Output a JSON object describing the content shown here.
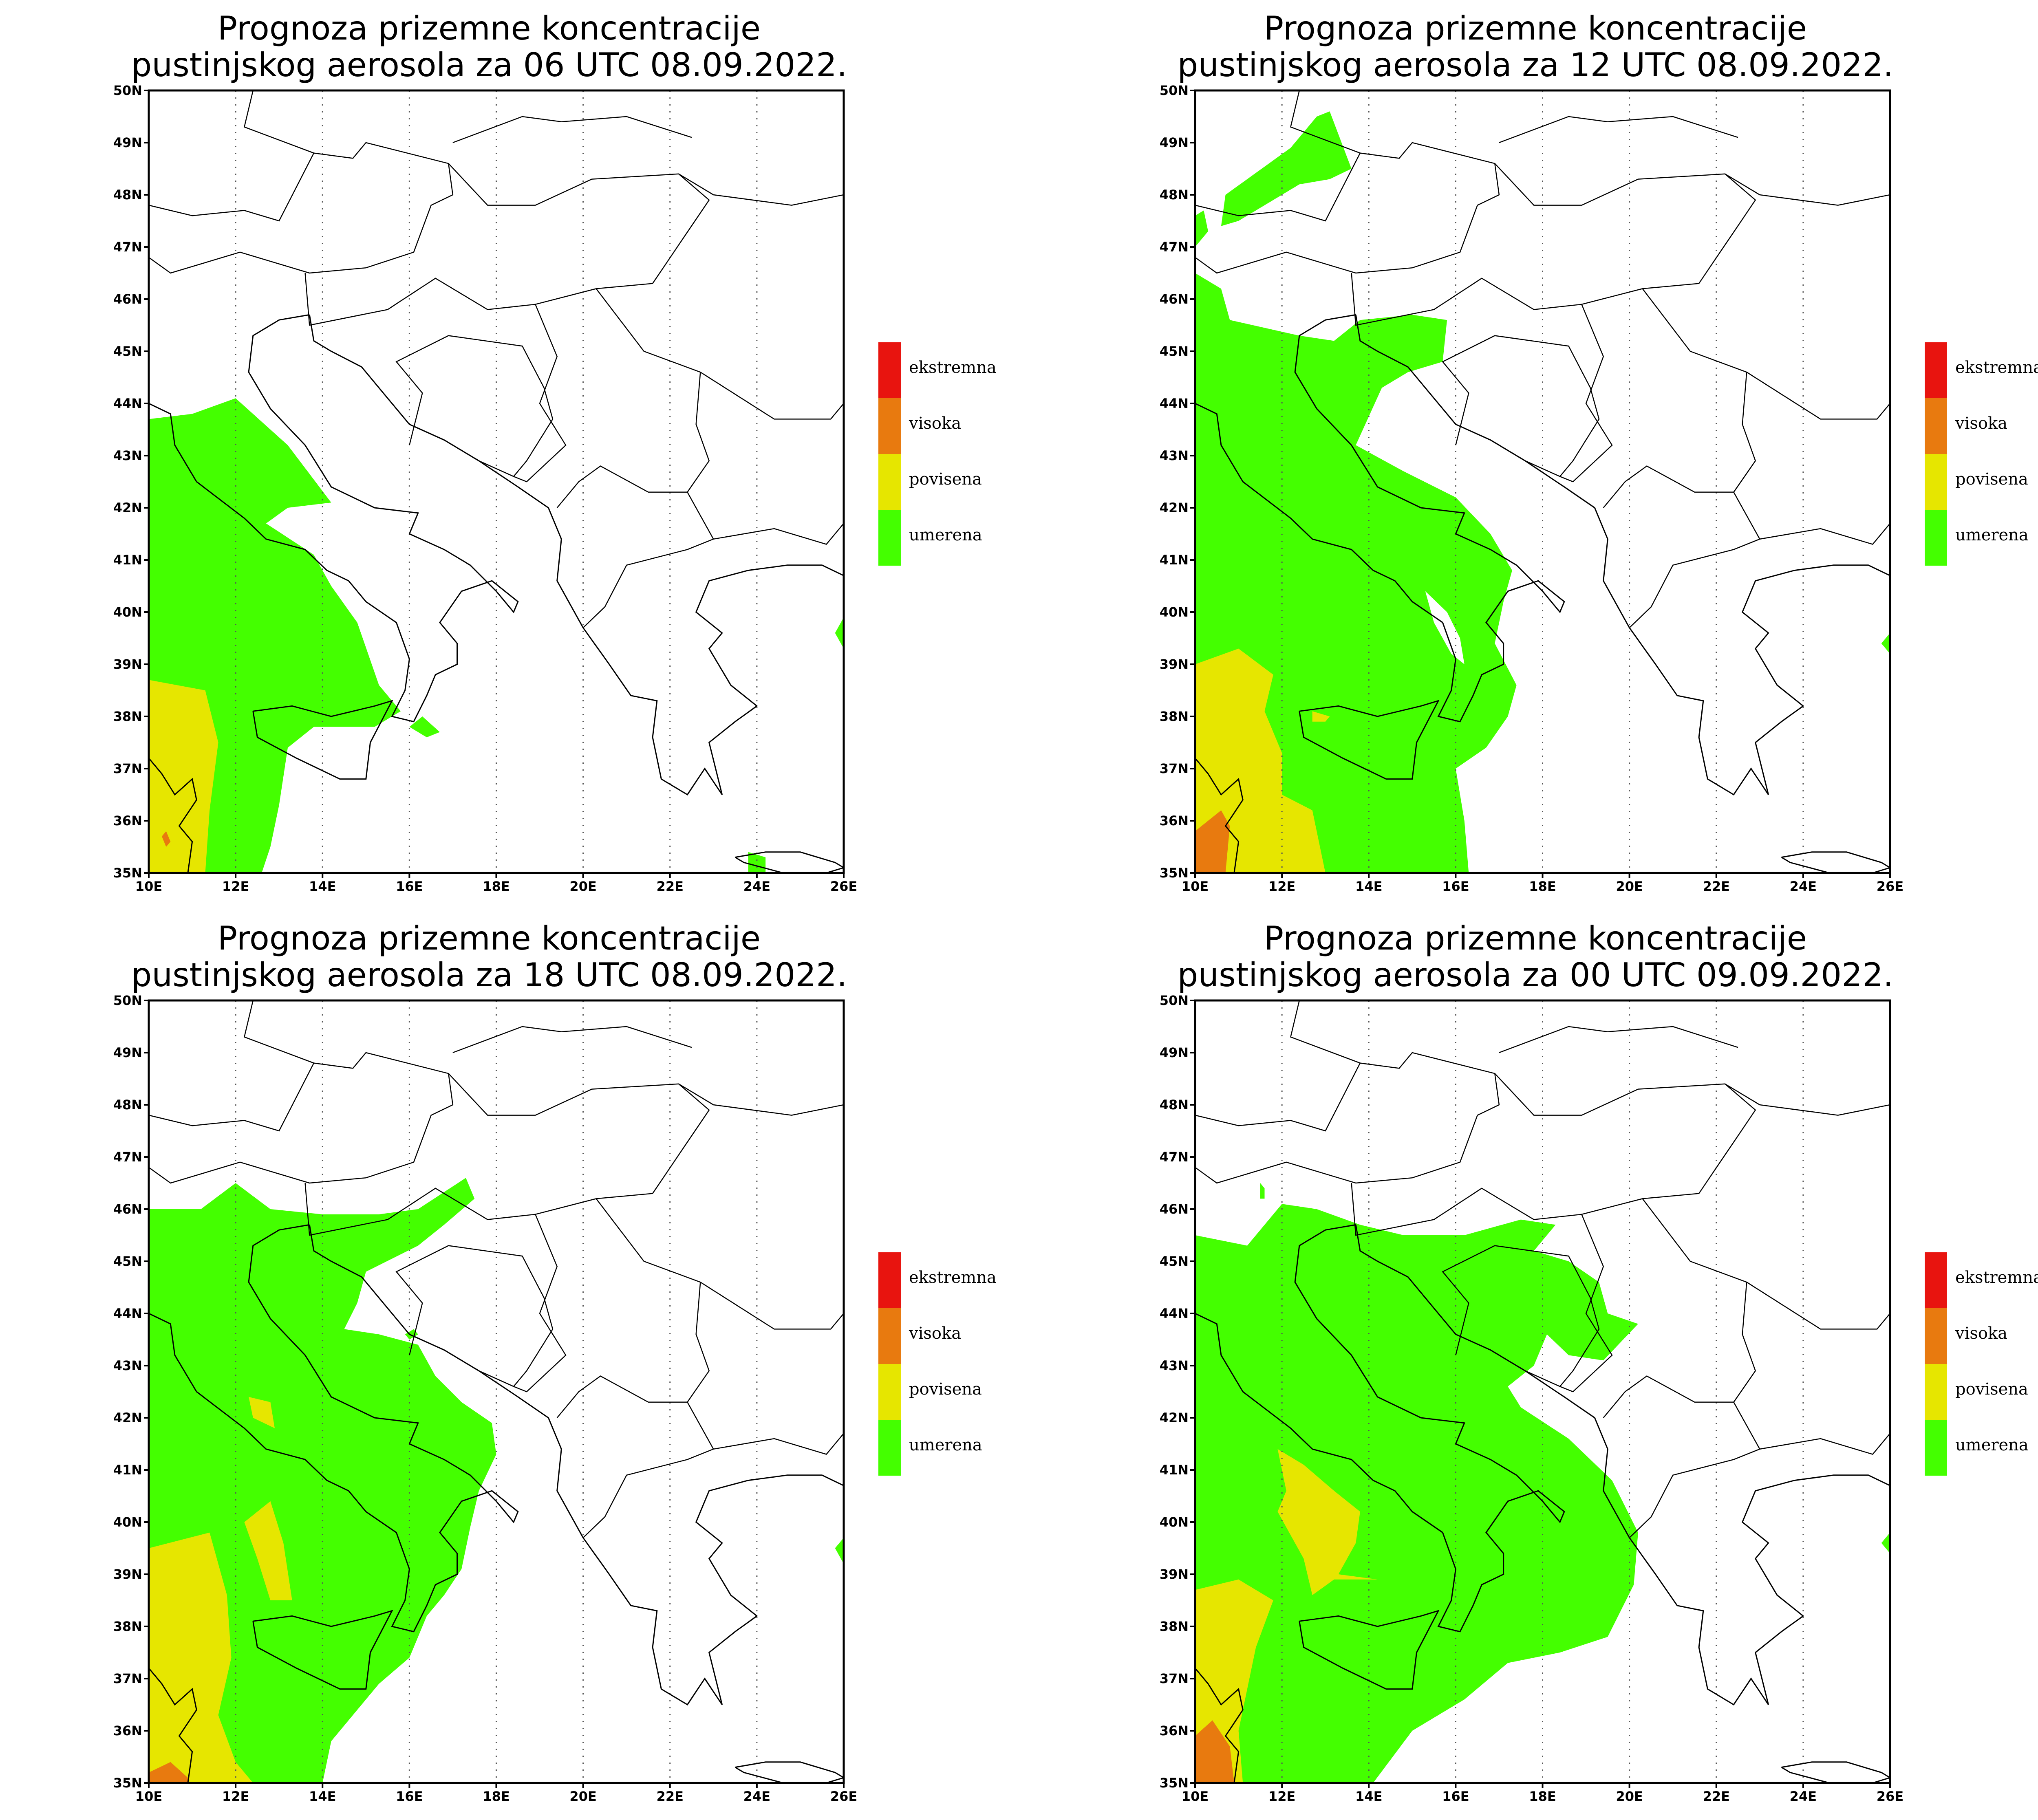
{
  "panels": [
    {
      "title_line1": "Prognoza prizemne koncentracije",
      "title_line2": "pustinjskog aerosola za 06 UTC 08.09.2022."
    },
    {
      "title_line1": "Prognoza prizemne koncentracije",
      "title_line2": "pustinjskog aerosola za 12 UTC 08.09.2022."
    },
    {
      "title_line1": "Prognoza prizemne koncentracije",
      "title_line2": "pustinjskog aerosola za 18 UTC 08.09.2022."
    },
    {
      "title_line1": "Prognoza prizemne koncentracije",
      "title_line2": "pustinjskog aerosola za 00 UTC 09.09.2022."
    }
  ],
  "lat_labels": [
    "50N",
    "49N",
    "48N",
    "47N",
    "46N",
    "45N",
    "44N",
    "43N",
    "42N",
    "41N",
    "40N",
    "39N",
    "38N",
    "37N",
    "36N",
    "35N"
  ],
  "lon_labels": [
    "10E",
    "12E",
    "14E",
    "16E",
    "18E",
    "20E",
    "22E",
    "24E",
    "26E"
  ],
  "legend": [
    {
      "label": "ekstremna",
      "color": "#e8140f"
    },
    {
      "label": "visoka",
      "color": "#e87a0f"
    },
    {
      "label": "povisena",
      "color": "#e6e600"
    },
    {
      "label": "umerena",
      "color": "#44ff00"
    }
  ],
  "colors": {
    "moderate": "#44ff00",
    "elevated": "#e6e600",
    "high": "#e87a0f",
    "coast": "#000000"
  }
}
